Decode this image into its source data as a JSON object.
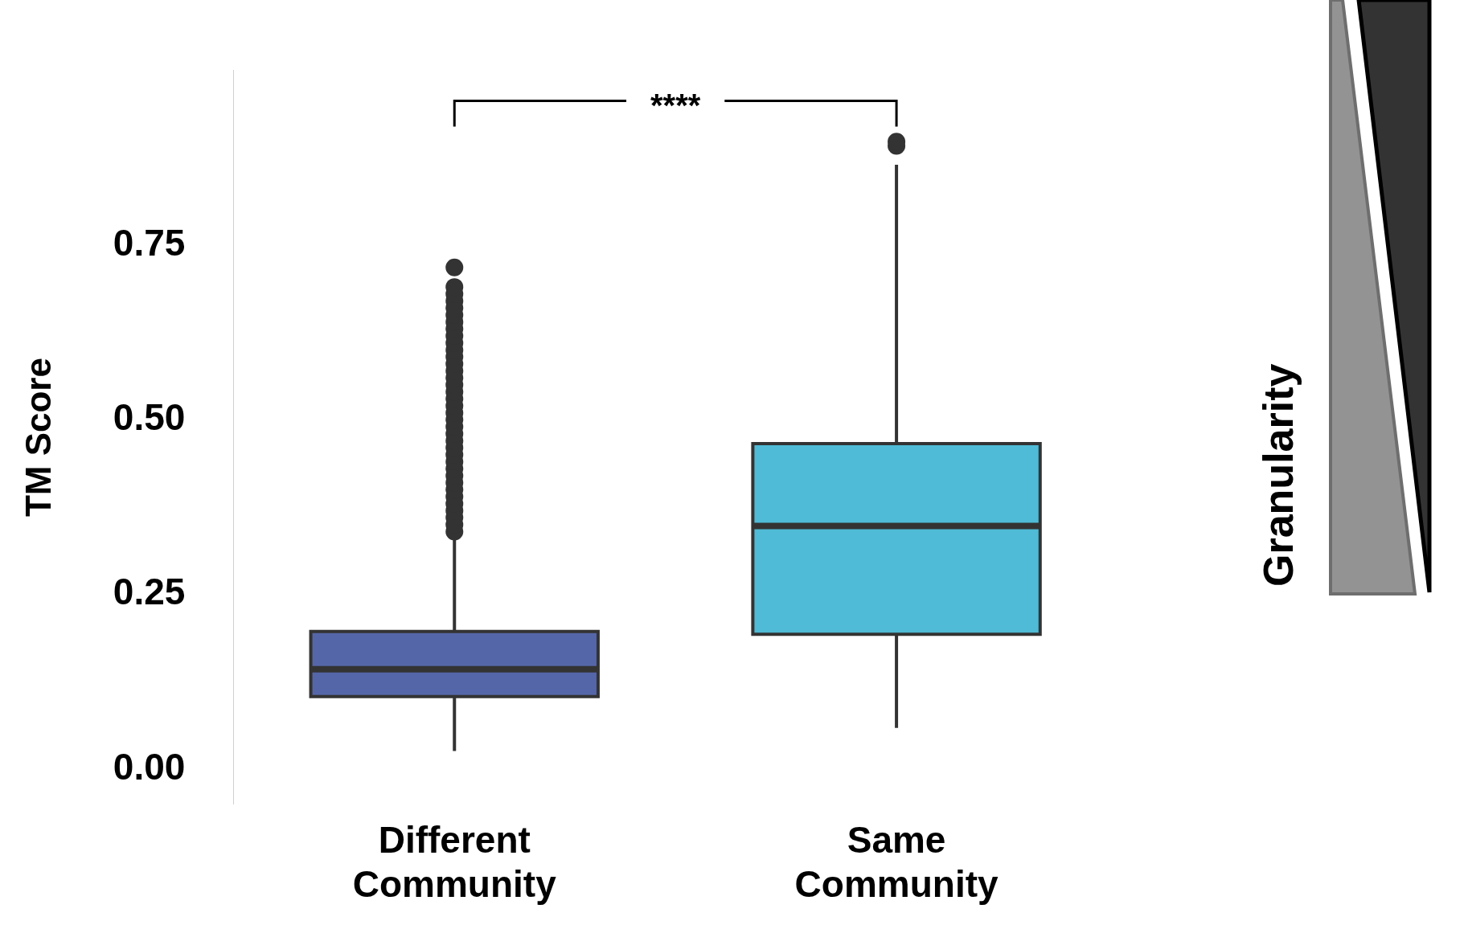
{
  "chart_data": {
    "type": "box",
    "ylabel": "TM Score",
    "categories": [
      "Different Community",
      "Same Community"
    ],
    "colors": [
      "#5566a8",
      "#4fbbd6"
    ],
    "boxes": [
      {
        "low": 0.026,
        "q1": 0.104,
        "median": 0.143,
        "q3": 0.197,
        "high": 0.332,
        "outliers": [
          0.34,
          0.35,
          0.36,
          0.37,
          0.38,
          0.39,
          0.4,
          0.41,
          0.42,
          0.43,
          0.44,
          0.45,
          0.46,
          0.47,
          0.48,
          0.49,
          0.5,
          0.51,
          0.52,
          0.53,
          0.54,
          0.55,
          0.56,
          0.57,
          0.58,
          0.59,
          0.6,
          0.61,
          0.62,
          0.63,
          0.64,
          0.65,
          0.66,
          0.67,
          0.68,
          0.69,
          0.718
        ]
      },
      {
        "low": 0.059,
        "q1": 0.193,
        "median": 0.348,
        "q3": 0.466,
        "high": 0.865,
        "outliers": [
          0.892,
          0.898
        ]
      }
    ],
    "ylim": [
      -0.05,
      1.0
    ],
    "yticks": [
      {
        "value": 0,
        "label": "0.00"
      },
      {
        "value": 0.25,
        "label": "0.25"
      },
      {
        "value": 0.5,
        "label": "0.50"
      },
      {
        "value": 0.75,
        "label": "0.75"
      }
    ],
    "grid": false,
    "annotations": [
      "****",
      "Granularity"
    ]
  }
}
